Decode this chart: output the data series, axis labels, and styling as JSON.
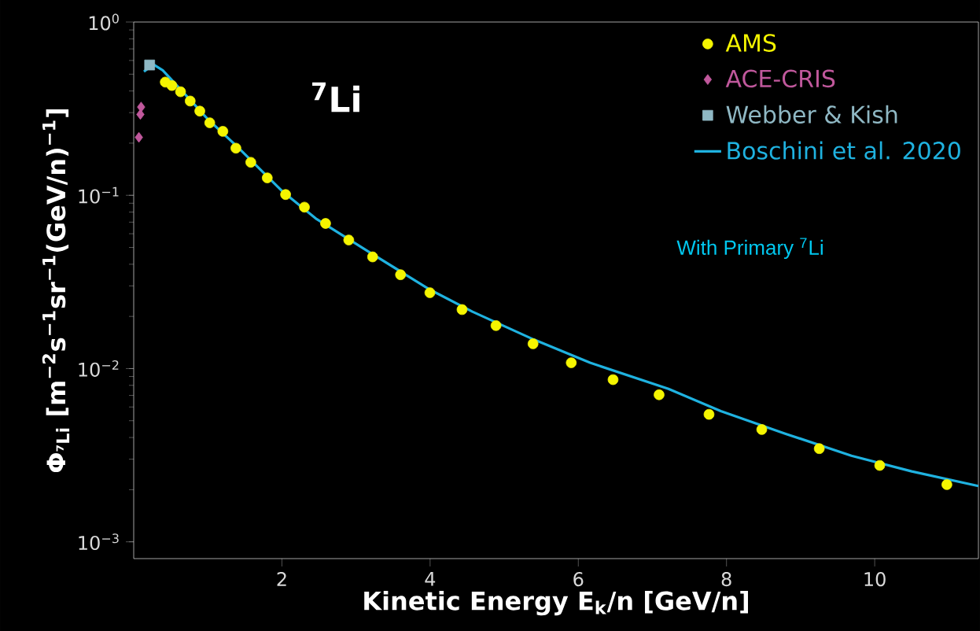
{
  "chart_data": {
    "type": "scatter",
    "xlabel": "Kinetic Energy E$_{k}$/n [GeV/n]",
    "ylabel": "Φ$_{⁷Li}$ [m$^{−2}$s$^{−1}$sr$^{−1}$(GeV/n)$^{−1}$]",
    "annotations": [
      "$^{7}$**Li**",
      "With Primary $^{7}$Li"
    ],
    "log": "y",
    "xlim": [
      0,
      11.4
    ],
    "ylim": [
      0.0008,
      1
    ],
    "xticks": [
      2,
      4,
      6,
      8,
      10
    ],
    "yticks": [
      {
        "value": 0.001,
        "label": "10$^{−3}$"
      },
      {
        "value": 0.01,
        "label": "10$^{−2}$"
      },
      {
        "value": 0.1,
        "label": "10$^{−1}$"
      },
      {
        "value": 1,
        "label": "10$^{0}$"
      }
    ],
    "legend": "top right",
    "grid": false,
    "series": [
      {
        "name": "AMS",
        "marker": "circle",
        "color": "#f5f500",
        "x": [
          0.426,
          0.515,
          0.632,
          0.762,
          0.892,
          1.026,
          1.203,
          1.379,
          1.58,
          1.802,
          2.05,
          2.304,
          2.589,
          2.902,
          3.224,
          3.601,
          3.997,
          4.431,
          4.889,
          5.389,
          5.905,
          6.469,
          7.09,
          7.764,
          8.476,
          9.252,
          10.068,
          10.974
        ],
        "values": [
          0.45,
          0.43,
          0.396,
          0.35,
          0.306,
          0.262,
          0.234,
          0.187,
          0.155,
          0.126,
          0.101,
          0.0854,
          0.0688,
          0.0552,
          0.0441,
          0.0348,
          0.0274,
          0.0219,
          0.0177,
          0.0139,
          0.0108,
          0.00863,
          0.00706,
          0.00544,
          0.00445,
          0.00345,
          0.00276,
          0.00214
        ]
      },
      {
        "name": "ACE-CRIS",
        "marker": "diamond",
        "color": "#c0589c",
        "x": [
          0.1,
          0.09,
          0.07
        ],
        "values": [
          0.323,
          0.293,
          0.216
        ]
      },
      {
        "name": "Webber & Kish",
        "marker": "square",
        "color": "#8fb8c4",
        "x": [
          0.215
        ],
        "values": [
          0.565
        ]
      },
      {
        "name": "Boschini et al. 2020",
        "type": "line",
        "marker": "none",
        "color": "#1fb2e0",
        "x": [
          0.138,
          0.265,
          0.392,
          0.7,
          1.0,
          1.397,
          2.0,
          2.455,
          3.161,
          4.0,
          4.571,
          5.4,
          6.159,
          7.217,
          7.923,
          8.8,
          9.686,
          10.5,
          11.4
        ],
        "values": [
          0.517,
          0.569,
          0.526,
          0.38,
          0.275,
          0.191,
          0.106,
          0.0736,
          0.0475,
          0.0285,
          0.0213,
          0.0147,
          0.0108,
          0.00764,
          0.00568,
          0.0042,
          0.00314,
          0.00255,
          0.0021
        ]
      }
    ]
  }
}
